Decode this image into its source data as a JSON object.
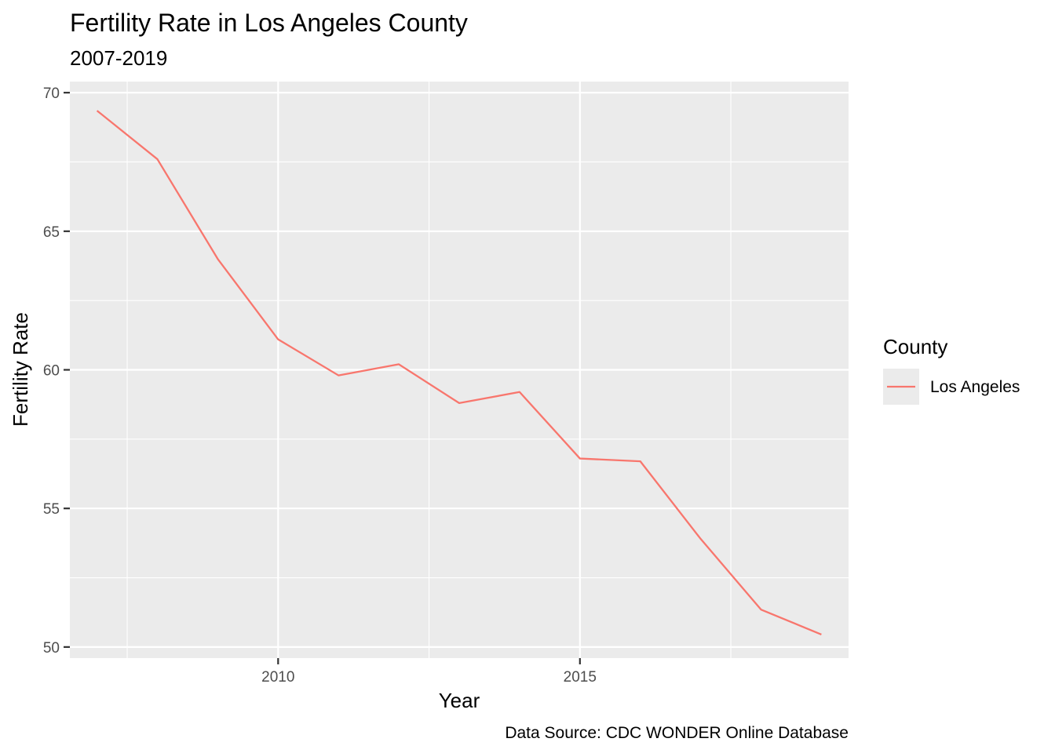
{
  "chart_data": {
    "type": "line",
    "title": "Fertility Rate in Los Angeles County",
    "subtitle": "2007-2019",
    "xlabel": "Year",
    "ylabel": "Fertility Rate",
    "caption": "Data Source: CDC WONDER Online Database",
    "xlim": [
      2006.55,
      2019.45
    ],
    "ylim": [
      49.6,
      70.4
    ],
    "x_ticks": [
      2010,
      2015
    ],
    "x_tick_labels": [
      "2010",
      "2015"
    ],
    "y_ticks": [
      50,
      55,
      60,
      65,
      70
    ],
    "y_tick_labels": [
      "50",
      "55",
      "60",
      "65",
      "70"
    ],
    "grid": true,
    "legend": {
      "title": "County",
      "position": "right",
      "entries": [
        {
          "label": "Los Angeles",
          "color": "#F8766D"
        }
      ]
    },
    "series": [
      {
        "name": "Los Angeles",
        "color": "#F8766D",
        "x": [
          2007,
          2008,
          2009,
          2010,
          2011,
          2012,
          2013,
          2014,
          2015,
          2016,
          2017,
          2018,
          2019
        ],
        "y": [
          69.35,
          67.6,
          64.0,
          61.1,
          59.8,
          60.2,
          58.8,
          59.2,
          56.8,
          56.7,
          53.9,
          51.35,
          50.45
        ]
      }
    ]
  }
}
